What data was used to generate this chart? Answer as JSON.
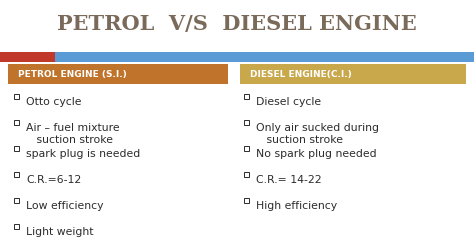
{
  "title": "PETROL  V/S  DIESEL ENGINE",
  "title_color": "#7a6a5a",
  "title_fontsize": 15,
  "title_fontweight": "bold",
  "bg_color": "#ffffff",
  "left_bar_color": "#c0392b",
  "right_bar_color": "#5b9bd5",
  "left_header_bg": "#c0732a",
  "right_header_bg": "#c9a84c",
  "left_header_text": "PETROL ENGINE (S.I.)",
  "right_header_text": "DIESEL ENGINE(C.I.)",
  "header_text_color": "#ffffff",
  "header_fontsize": 6.5,
  "header_fontweight": "bold",
  "bullet_color": "#2c2c2c",
  "bullet_fontsize": 7.8,
  "left_bullets": [
    "Otto cycle",
    "Air – fuel mixture\n   suction stroke",
    "spark plug is needed",
    "C.R.=6-12",
    "Low efficiency",
    "Light weight"
  ],
  "right_bullets": [
    "Diesel cycle",
    "Only air sucked during\n   suction stroke",
    "No spark plug needed",
    "C.R.= 14-22",
    "High efficiency"
  ]
}
